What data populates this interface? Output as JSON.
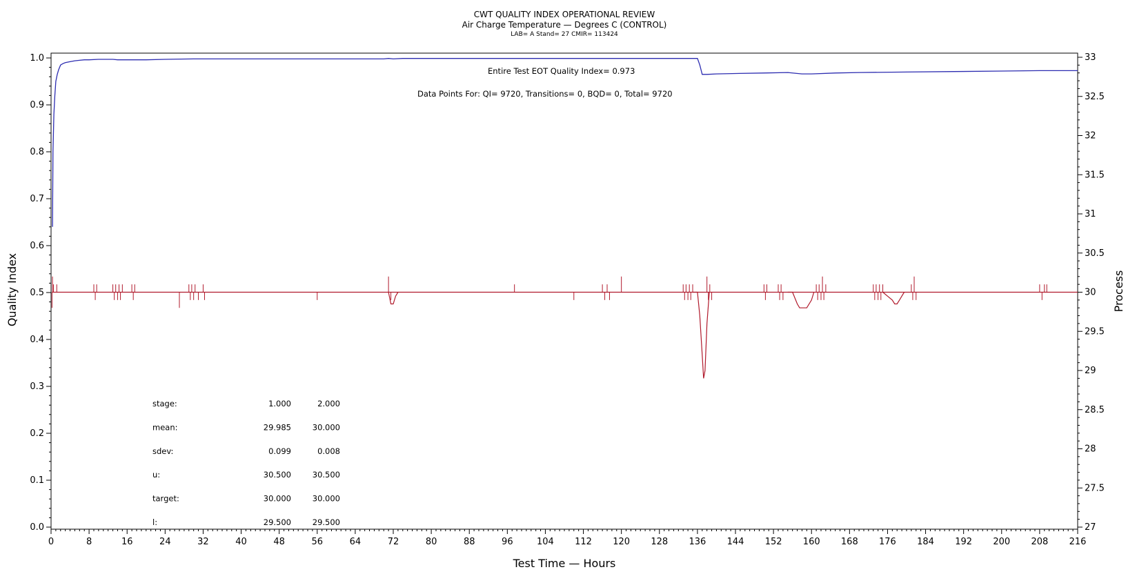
{
  "chart_data": {
    "type": "line",
    "title": "CWT QUALITY INDEX OPERATIONAL REVIEW",
    "subtitle": "Air Charge Temperature — Degrees C (CONTROL)",
    "subsubtitle": "LAB= A Stand= 27 CMIR= 113424",
    "xlabel": "Test Time — Hours",
    "ylabel": "Quality Index",
    "y2label": "Process",
    "xlim": [
      0,
      216
    ],
    "ylim": [
      0,
      1.0
    ],
    "y2lim": [
      27,
      33
    ],
    "x_ticks": [
      "0",
      "8",
      "16",
      "24",
      "32",
      "40",
      "48",
      "56",
      "64",
      "72",
      "80",
      "88",
      "96",
      "104",
      "112",
      "120",
      "128",
      "136",
      "144",
      "152",
      "160",
      "168",
      "176",
      "184",
      "192",
      "200",
      "208",
      "216"
    ],
    "y_ticks": [
      "0.0",
      "0.1",
      "0.2",
      "0.3",
      "0.4",
      "0.5",
      "0.6",
      "0.7",
      "0.8",
      "0.9",
      "1.0"
    ],
    "y2_ticks": [
      "27",
      "27.5",
      "28",
      "28.5",
      "29",
      "29.5",
      "30",
      "30.5",
      "31",
      "31.5",
      "32",
      "32.5",
      "33"
    ],
    "annotations": {
      "eot": "Entire Test EOT Quality Index=   0.973",
      "points": "Data Points For: QI=  9720, Transitions=     0, BQD=     0, Total=  9720"
    },
    "stats": [
      {
        "label": "stage:",
        "v1": "1.000",
        "v2": "2.000"
      },
      {
        "label": "mean:",
        "v1": "29.985",
        "v2": "30.000"
      },
      {
        "label": "sdev:",
        "v1": "0.099",
        "v2": "0.008"
      },
      {
        "label": "u:",
        "v1": "30.500",
        "v2": "30.500"
      },
      {
        "label": "target:",
        "v1": "30.000",
        "v2": "30.000"
      },
      {
        "label": "l:",
        "v1": "29.500",
        "v2": "29.500"
      }
    ],
    "series": [
      {
        "axis": "left",
        "color": "#2b2bb0",
        "x": [
          0.3,
          0.4,
          0.6,
          0.8,
          1.0,
          1.3,
          1.6,
          2.0,
          2.5,
          3.0,
          4,
          5,
          6,
          7,
          8,
          10,
          13,
          14,
          16,
          20,
          24,
          30,
          40,
          50,
          60,
          64,
          70,
          71,
          72,
          74,
          80,
          90,
          100,
          110,
          120,
          128,
          134,
          136,
          136.5,
          137,
          138,
          140,
          145,
          150,
          155,
          158,
          160,
          165,
          170,
          180,
          190,
          200,
          208,
          216
        ],
        "y": [
          0.64,
          0.8,
          0.88,
          0.92,
          0.95,
          0.965,
          0.975,
          0.985,
          0.988,
          0.99,
          0.992,
          0.994,
          0.995,
          0.996,
          0.996,
          0.997,
          0.997,
          0.996,
          0.996,
          0.996,
          0.997,
          0.998,
          0.998,
          0.998,
          0.998,
          0.998,
          0.998,
          0.999,
          0.998,
          0.999,
          0.999,
          0.999,
          0.999,
          0.999,
          0.999,
          0.999,
          0.999,
          0.999,
          0.985,
          0.965,
          0.965,
          0.966,
          0.967,
          0.968,
          0.969,
          0.966,
          0.966,
          0.968,
          0.969,
          0.97,
          0.971,
          0.972,
          0.973,
          0.973
        ]
      },
      {
        "axis": "right",
        "color": "#b0182a",
        "baseline": 30.0,
        "spikes": [
          [
            0.2,
            29.8
          ],
          [
            0.3,
            30.2
          ],
          [
            0.5,
            30.1
          ],
          [
            1.2,
            30.1
          ],
          [
            9,
            30.1
          ],
          [
            9.3,
            29.9
          ],
          [
            9.6,
            30.1
          ],
          [
            13,
            30.1
          ],
          [
            13.3,
            29.9
          ],
          [
            13.6,
            30.1
          ],
          [
            14,
            29.9
          ],
          [
            14.3,
            30.1
          ],
          [
            14.6,
            29.9
          ],
          [
            15,
            30.1
          ],
          [
            17,
            30.1
          ],
          [
            17.3,
            29.9
          ],
          [
            17.6,
            30.1
          ],
          [
            27,
            29.8
          ],
          [
            29,
            30.1
          ],
          [
            29.3,
            29.9
          ],
          [
            29.6,
            30.1
          ],
          [
            30,
            29.9
          ],
          [
            30.3,
            30.1
          ],
          [
            31,
            29.9
          ],
          [
            32,
            30.1
          ],
          [
            32.3,
            29.9
          ],
          [
            56,
            29.9
          ],
          [
            71,
            30.2
          ],
          [
            71.5,
            29.9
          ],
          [
            97.5,
            30.1
          ],
          [
            110,
            29.9
          ],
          [
            116,
            30.1
          ],
          [
            116.5,
            29.9
          ],
          [
            117,
            30.1
          ],
          [
            117.5,
            29.9
          ],
          [
            120,
            30.2
          ],
          [
            133,
            30.1
          ],
          [
            133.3,
            29.9
          ],
          [
            133.6,
            30.1
          ],
          [
            134,
            29.9
          ],
          [
            134.3,
            30.1
          ],
          [
            134.6,
            29.9
          ],
          [
            135,
            30.1
          ],
          [
            138,
            30.2
          ],
          [
            138.3,
            29.9
          ],
          [
            138.6,
            30.1
          ],
          [
            139,
            29.9
          ],
          [
            150,
            30.1
          ],
          [
            150.3,
            29.9
          ],
          [
            150.6,
            30.1
          ],
          [
            153,
            30.1
          ],
          [
            153.3,
            29.9
          ],
          [
            153.6,
            30.1
          ],
          [
            154,
            29.9
          ],
          [
            161,
            30.1
          ],
          [
            161.3,
            29.9
          ],
          [
            161.6,
            30.1
          ],
          [
            162,
            29.9
          ],
          [
            162.3,
            30.2
          ],
          [
            162.6,
            29.9
          ],
          [
            163,
            30.1
          ],
          [
            173,
            30.1
          ],
          [
            173.3,
            29.9
          ],
          [
            173.6,
            30.1
          ],
          [
            174,
            29.9
          ],
          [
            174.3,
            30.1
          ],
          [
            174.6,
            29.9
          ],
          [
            175,
            30.1
          ],
          [
            181,
            30.1
          ],
          [
            181.3,
            29.9
          ],
          [
            181.6,
            30.2
          ],
          [
            182,
            29.9
          ],
          [
            208,
            30.1
          ],
          [
            208.5,
            29.9
          ],
          [
            209,
            30.1
          ],
          [
            209.5,
            30.1
          ]
        ],
        "dips": [
          {
            "x": [
              135,
              136,
              136.5,
              137,
              137.3,
              137.6,
              138,
              138.5
            ],
            "y": [
              30.0,
              30.0,
              29.7,
              29.2,
              28.9,
              29.0,
              29.6,
              30.0
            ]
          },
          {
            "x": [
              155,
              156,
              157,
              157.5,
              158,
              159,
              160,
              160.5
            ],
            "y": [
              30.0,
              30.0,
              29.85,
              29.8,
              29.8,
              29.8,
              29.9,
              30.0
            ]
          },
          {
            "x": [
              175,
              176,
              177,
              177.5,
              178,
              178.5,
              179,
              179.5
            ],
            "y": [
              30.0,
              29.95,
              29.9,
              29.85,
              29.85,
              29.9,
              29.95,
              30.0
            ]
          },
          {
            "x": [
              71,
              71.5,
              72,
              72.5,
              73
            ],
            "y": [
              30.0,
              29.85,
              29.85,
              29.95,
              30.0
            ]
          }
        ]
      }
    ]
  }
}
